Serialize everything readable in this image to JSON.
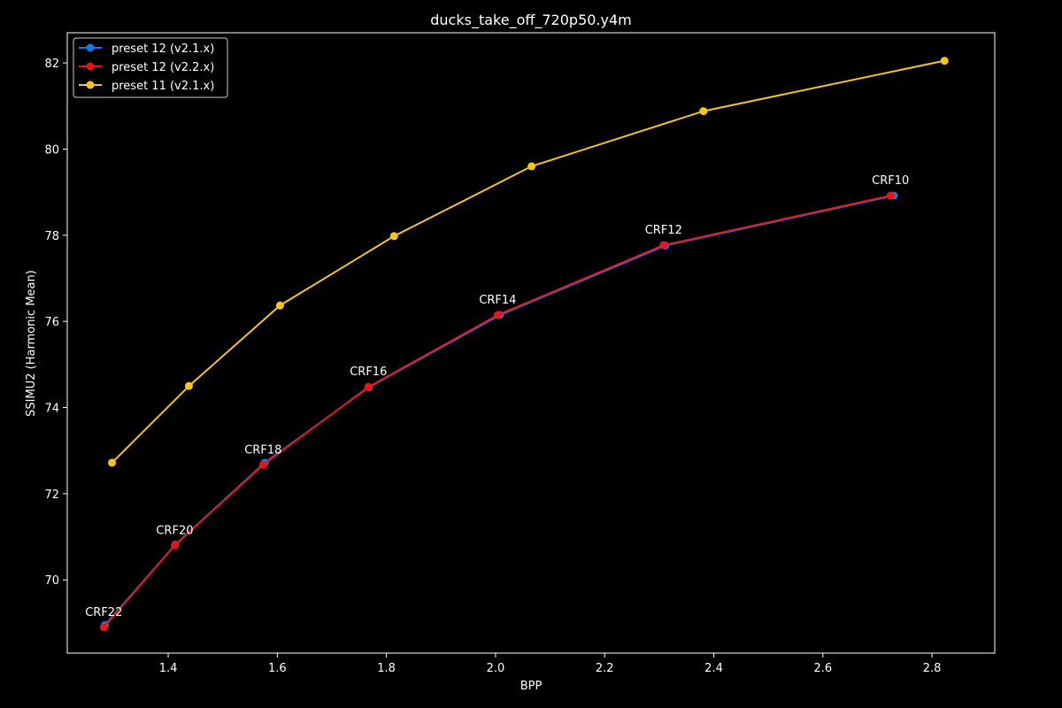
{
  "chart_data": {
    "type": "line",
    "title": "ducks_take_off_720p50.y4m",
    "xlabel": "BPP",
    "ylabel": "SSIMU2 (Harmonic Mean)",
    "xlim": [
      1.215,
      2.915
    ],
    "ylim": [
      68.3,
      82.7
    ],
    "xticks": [
      "1.4",
      "1.6",
      "1.8",
      "2.0",
      "2.2",
      "2.4",
      "2.6",
      "2.8"
    ],
    "yticks": [
      "70",
      "72",
      "74",
      "76",
      "78",
      "80",
      "82"
    ],
    "grid": false,
    "legend_position": "top-left",
    "background": "#000000",
    "series": [
      {
        "name": "preset 12 (v2.1.x)",
        "color": "#1f77e4",
        "x": [
          1.284,
          1.413,
          1.577,
          1.768,
          2.008,
          2.311,
          2.73
        ],
        "y": [
          68.95,
          70.82,
          72.72,
          74.47,
          76.15,
          77.76,
          78.92
        ]
      },
      {
        "name": "preset 12 (v2.2.x)",
        "color": "#e8141c",
        "x": [
          1.282,
          1.412,
          1.574,
          1.767,
          2.004,
          2.308,
          2.724
        ],
        "y": [
          68.9,
          70.8,
          72.67,
          74.48,
          76.15,
          77.77,
          78.92
        ]
      },
      {
        "name": "preset 11 (v2.1.x)",
        "color": "#f5c518",
        "x": [
          1.297,
          1.438,
          1.605,
          1.814,
          2.066,
          2.381,
          2.823
        ],
        "y": [
          72.72,
          74.5,
          76.37,
          77.98,
          79.6,
          80.88,
          82.05
        ]
      }
    ],
    "annotations": [
      {
        "text": "CRF22",
        "x": 1.282,
        "y": 68.9
      },
      {
        "text": "CRF20",
        "x": 1.412,
        "y": 70.8
      },
      {
        "text": "CRF18",
        "x": 1.574,
        "y": 72.67
      },
      {
        "text": "CRF16",
        "x": 1.767,
        "y": 74.48
      },
      {
        "text": "CRF14",
        "x": 2.004,
        "y": 76.15
      },
      {
        "text": "CRF12",
        "x": 2.308,
        "y": 77.77
      },
      {
        "text": "CRF10",
        "x": 2.724,
        "y": 78.92
      }
    ]
  }
}
